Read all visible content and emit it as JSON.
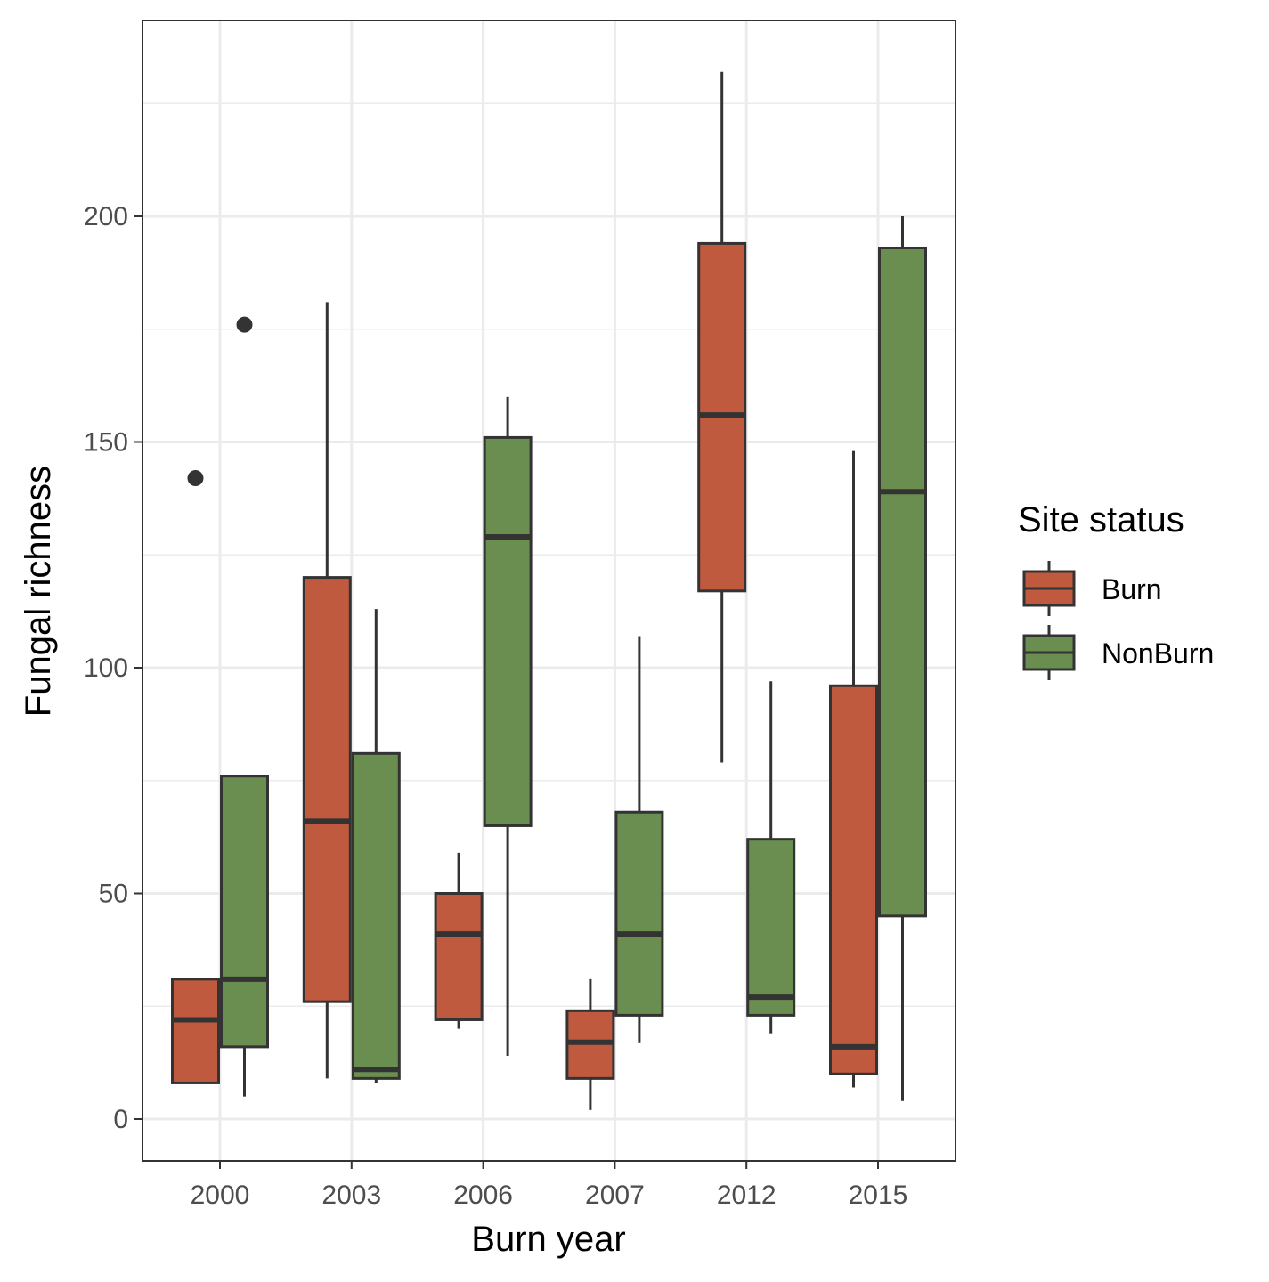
{
  "chart_data": {
    "type": "box",
    "xlabel": "Burn year",
    "ylabel": "Fungal richness",
    "categories": [
      "2000",
      "2003",
      "2006",
      "2007",
      "2012",
      "2015"
    ],
    "ylim": [
      -9,
      248
    ],
    "yticks": [
      "0",
      "50",
      "100",
      "150",
      "200"
    ],
    "grid": true,
    "legend": {
      "title": "Site status",
      "position": "right",
      "entries": [
        "Burn",
        "NonBurn"
      ]
    },
    "colors": {
      "Burn": "#c05a3e",
      "NonBurn": "#6a8d50",
      "outline": "#333333",
      "grid": "#ebebeb",
      "panel_border": "#333333"
    },
    "series": [
      {
        "name": "Burn",
        "boxes": [
          {
            "category": "2000",
            "min": 8,
            "q1": 8,
            "median": 22,
            "q3": 31,
            "max": 31,
            "outliers": [
              142
            ]
          },
          {
            "category": "2003",
            "min": 9,
            "q1": 26,
            "median": 66,
            "q3": 120,
            "max": 181,
            "outliers": []
          },
          {
            "category": "2006",
            "min": 20,
            "q1": 22,
            "median": 41,
            "q3": 50,
            "max": 59,
            "outliers": []
          },
          {
            "category": "2007",
            "min": 2,
            "q1": 9,
            "median": 17,
            "q3": 24,
            "max": 31,
            "outliers": []
          },
          {
            "category": "2012",
            "min": 79,
            "q1": 117,
            "median": 156,
            "q3": 194,
            "max": 232,
            "outliers": []
          },
          {
            "category": "2015",
            "min": 7,
            "q1": 10,
            "median": 16,
            "q3": 96,
            "max": 148,
            "outliers": []
          }
        ]
      },
      {
        "name": "NonBurn",
        "boxes": [
          {
            "category": "2000",
            "min": 5,
            "q1": 16,
            "median": 31,
            "q3": 76,
            "max": 76,
            "outliers": [
              176
            ]
          },
          {
            "category": "2003",
            "min": 8,
            "q1": 9,
            "median": 11,
            "q3": 81,
            "max": 113,
            "outliers": []
          },
          {
            "category": "2006",
            "min": 14,
            "q1": 65,
            "median": 129,
            "q3": 151,
            "max": 160,
            "outliers": []
          },
          {
            "category": "2007",
            "min": 17,
            "q1": 23,
            "median": 41,
            "q3": 68,
            "max": 107,
            "outliers": []
          },
          {
            "category": "2012",
            "min": 19,
            "q1": 23,
            "median": 27,
            "q3": 62,
            "max": 97,
            "outliers": []
          },
          {
            "category": "2015",
            "min": 4,
            "q1": 45,
            "median": 139,
            "q3": 193,
            "max": 200,
            "outliers": []
          }
        ]
      }
    ]
  }
}
